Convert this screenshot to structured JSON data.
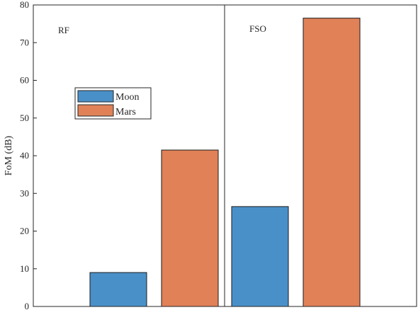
{
  "chart_data": {
    "type": "bar",
    "title": "",
    "xlabel": "",
    "ylabel": "FoM (dB)",
    "ylim": [
      0,
      80
    ],
    "yticks": [
      0,
      10,
      20,
      30,
      40,
      50,
      60,
      70,
      80
    ],
    "grid": false,
    "groups": [
      "RF",
      "FSO"
    ],
    "series": [
      {
        "name": "Moon",
        "color": "#4a90c8",
        "values": [
          9,
          26.5
        ]
      },
      {
        "name": "Mars",
        "color": "#e08158",
        "values": [
          41.5,
          76.5
        ]
      }
    ],
    "legend": {
      "placement": "upper-left",
      "entries": [
        "Moon",
        "Mars"
      ]
    }
  }
}
